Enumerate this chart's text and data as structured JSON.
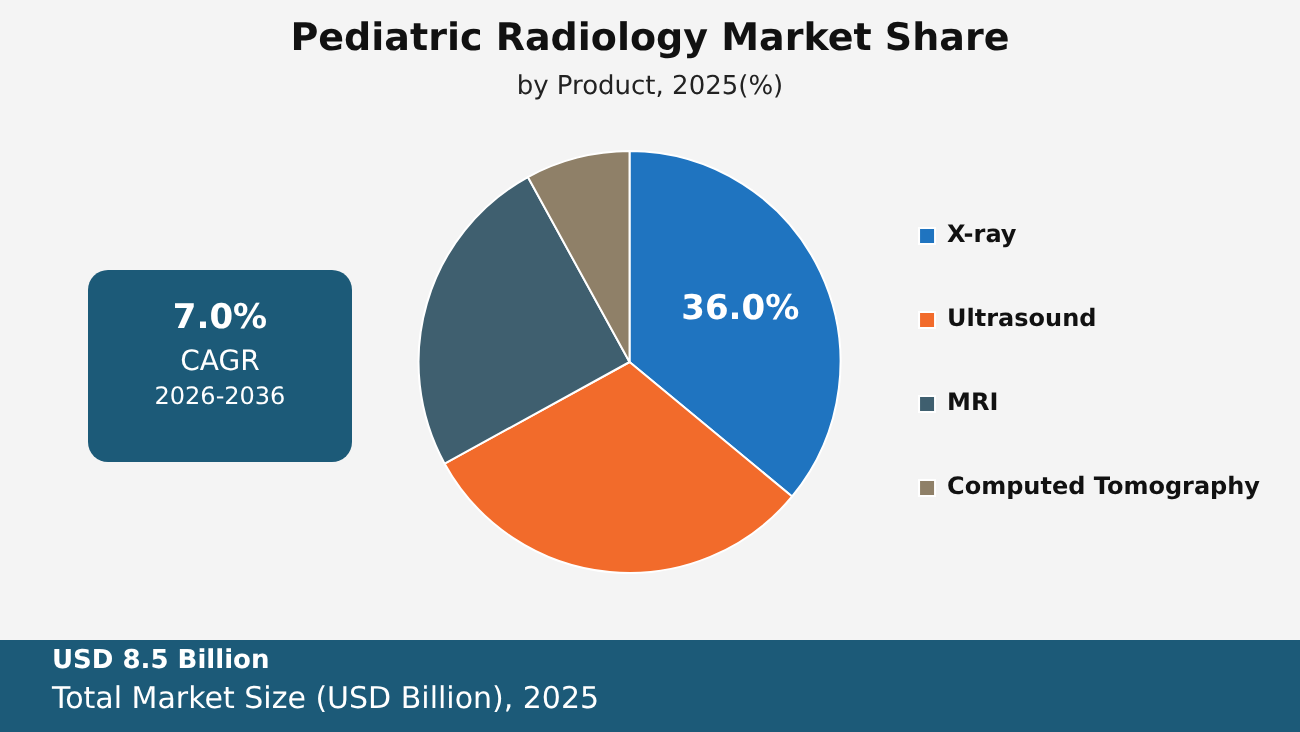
{
  "chart_data": {
    "type": "pie",
    "title": "Pediatric Radiology Market Share",
    "subtitle": "by Product, 2025(%)",
    "categories": [
      "X-ray",
      "Ultrasound",
      "MRI",
      "Computed Tomography"
    ],
    "values": [
      36,
      31,
      25,
      8
    ],
    "colors": [
      "#1f74c0",
      "#f26b2b",
      "#3f5f6f",
      "#8f8068"
    ],
    "value_labels": [
      "36.0%",
      null,
      null,
      null
    ],
    "legend": "right",
    "annotations": [
      "7.0%",
      "CAGR",
      "2026-2036",
      "USD 8.5 Billion",
      "Total Market Size (USD Billion), 2025"
    ]
  }
}
